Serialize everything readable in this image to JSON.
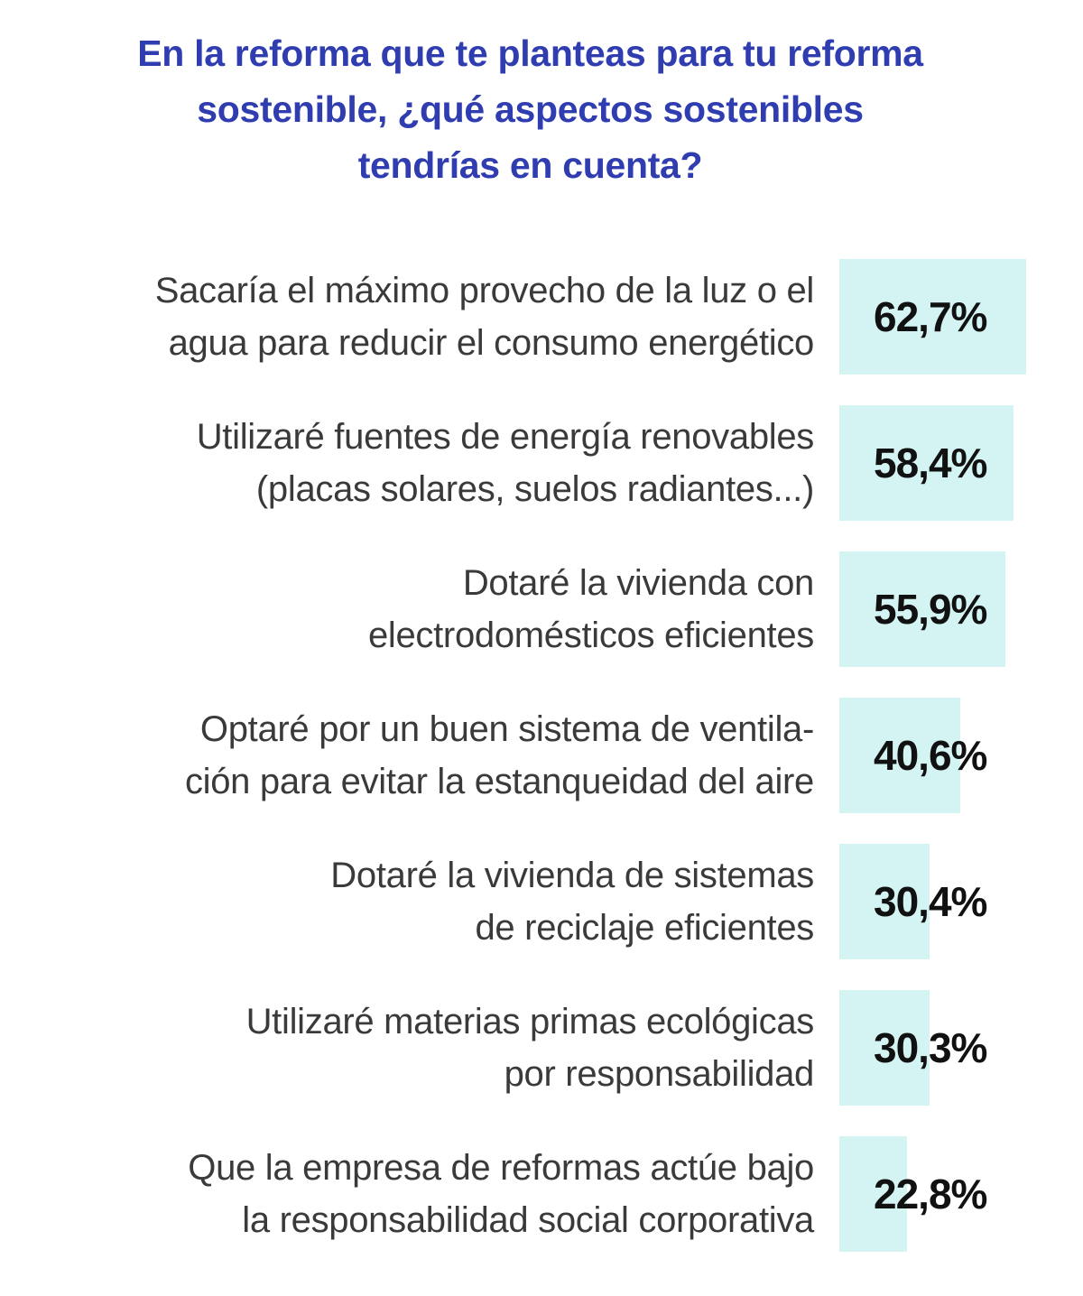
{
  "chart_data": {
    "type": "bar",
    "orientation": "horizontal",
    "title": "En la reforma que te planteas para tu reforma sostenible, ¿qué aspectos sostenibles tendrías en cuenta?",
    "title_lines": [
      "En la reforma que te planteas para tu reforma",
      "sostenible, ¿qué aspectos sostenibles",
      "tendrías en cuenta?"
    ],
    "unit": "%",
    "bar_color": "#d3f4f2",
    "title_color": "#2f3db0",
    "categories": [
      {
        "lines": [
          "Sacaría el máximo provecho de la luz o el",
          "agua para reducir el consumo energético"
        ],
        "value": 62.7,
        "label": "62,7%"
      },
      {
        "lines": [
          "Utilizaré fuentes de energía renovables",
          "(placas solares, suelos radiantes...)"
        ],
        "value": 58.4,
        "label": "58,4%"
      },
      {
        "lines": [
          "Dotaré la vivienda con",
          "electrodomésticos eficientes"
        ],
        "value": 55.9,
        "label": "55,9%"
      },
      {
        "lines": [
          "Optaré por un buen sistema de ventila-",
          "ción para evitar la estanqueidad del aire"
        ],
        "value": 40.6,
        "label": "40,6%"
      },
      {
        "lines": [
          "Dotaré la vivienda de sistemas",
          "de reciclaje eficientes"
        ],
        "value": 30.4,
        "label": "30,4%"
      },
      {
        "lines": [
          "Utilizaré materias primas ecológicas",
          "por responsabilidad"
        ],
        "value": 30.3,
        "label": "30,3%"
      },
      {
        "lines": [
          "Que la empresa de reformas actúe bajo",
          "la responsabilidad social corporativa"
        ],
        "value": 22.8,
        "label": "22,8%"
      }
    ]
  }
}
